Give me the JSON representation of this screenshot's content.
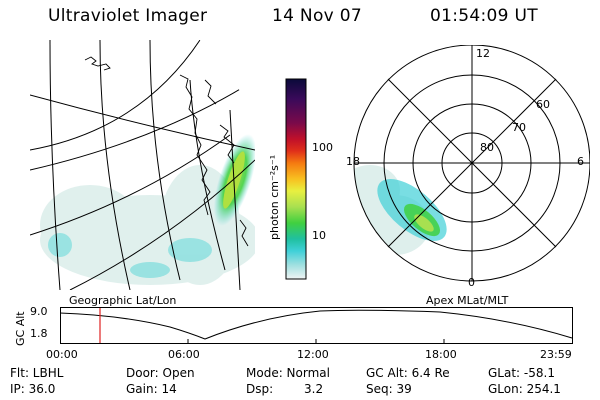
{
  "header": {
    "instrument": "Ultraviolet Imager",
    "date": "14 Nov 07",
    "time": "01:54:09 UT"
  },
  "colorbar": {
    "label": "photon cm⁻²s⁻¹",
    "ticks": [
      "100",
      "10"
    ],
    "colors": [
      "#0a0a3a",
      "#3a0a5a",
      "#7a0a4a",
      "#b0102a",
      "#e0301a",
      "#f57a10",
      "#f8c020",
      "#e8f040",
      "#a8e050",
      "#40d040",
      "#20c0a0",
      "#40d0d8",
      "#a0e0e0",
      "#e8f0f0"
    ]
  },
  "geo_panel": {
    "label": "Geographic Lat/Lon"
  },
  "polar_panel": {
    "label": "Apex MLat/MLT",
    "lat_labels": [
      "60",
      "70",
      "80"
    ],
    "mlt_labels": [
      "12",
      "18",
      "6",
      "0"
    ]
  },
  "altitude_plot": {
    "ylabel": "GC Alt",
    "yticks": [
      "9.0",
      "1.8"
    ],
    "xticks": [
      "00:00",
      "06:00",
      "12:00",
      "18:00",
      "23:59"
    ],
    "marker_time": "01:54"
  },
  "info": {
    "filter": "Flt: LBHL",
    "ip": "IP: 36.0",
    "door": "Door: Open",
    "gain": "Gain: 14",
    "mode": "Mode: Normal",
    "dsp_label": "Dsp:",
    "dsp_value": "3.2",
    "gc_alt": "GC Alt: 6.4 Re",
    "seq": "Seq: 39",
    "glat": "GLat: -58.1",
    "glon": "GLon: 254.1"
  },
  "colors": {
    "aurora_high": "#a8e050",
    "aurora_mid": "#40d0d8",
    "marker": "#e02020"
  }
}
